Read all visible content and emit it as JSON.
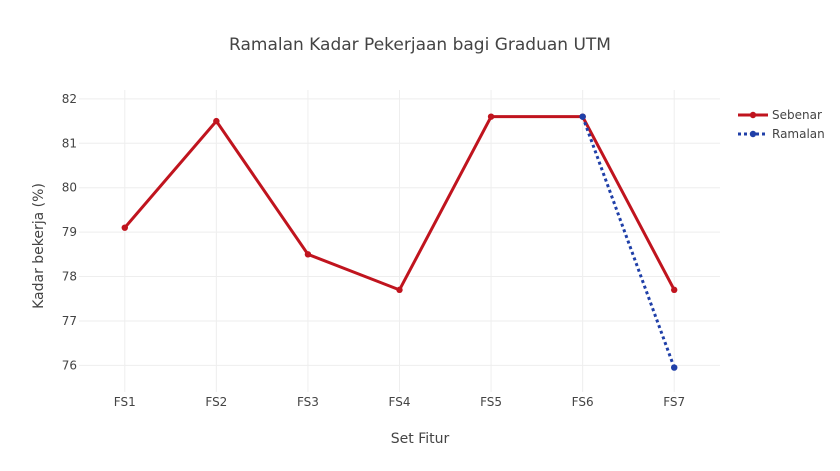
{
  "chart_data": {
    "type": "line",
    "title": "Ramalan Kadar Pekerjaan bagi Graduan UTM",
    "xlabel": "Set Fitur",
    "ylabel": "Kadar bekerja (%)",
    "categories": [
      "FS1",
      "FS2",
      "FS3",
      "FS4",
      "FS5",
      "FS6",
      "FS7"
    ],
    "ylim": [
      75.4,
      82.2
    ],
    "yticks": [
      76,
      77,
      78,
      79,
      80,
      81,
      82
    ],
    "grid": true,
    "legend_position": "top-right",
    "series": [
      {
        "name": "Sebenar",
        "color": "#c0141e",
        "dash": "solid",
        "points": [
          {
            "x": "FS1",
            "y": 79.1
          },
          {
            "x": "FS2",
            "y": 81.5
          },
          {
            "x": "FS3",
            "y": 78.5
          },
          {
            "x": "FS4",
            "y": 77.7
          },
          {
            "x": "FS5",
            "y": 81.6
          },
          {
            "x": "FS6",
            "y": 81.6
          },
          {
            "x": "FS7",
            "y": 77.7
          }
        ]
      },
      {
        "name": "Ramalan",
        "color": "#1f3fa8",
        "dash": "dot",
        "points": [
          {
            "x": "FS6",
            "y": 81.6
          },
          {
            "x": "FS7",
            "y": 75.95
          }
        ]
      }
    ]
  }
}
